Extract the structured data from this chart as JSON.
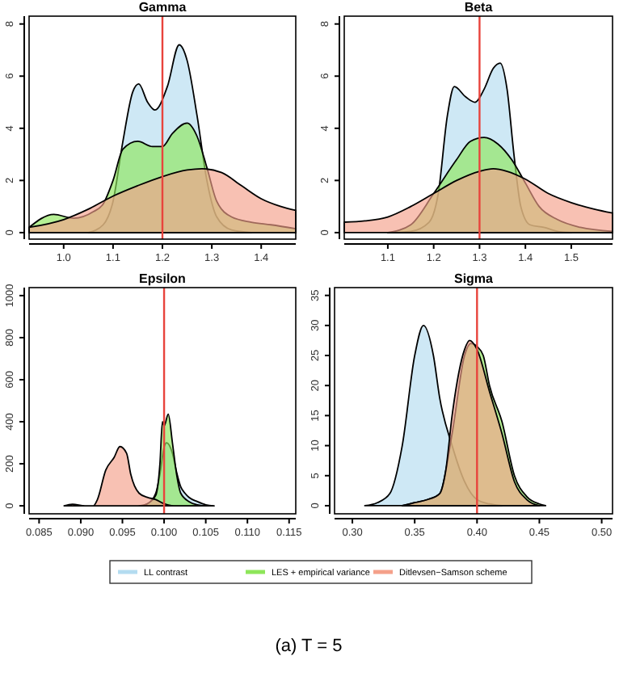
{
  "chart_data": [
    {
      "type": "area",
      "title": "Gamma",
      "xlim": [
        0.93,
        1.47
      ],
      "ylim": [
        -0.25,
        8.3
      ],
      "xticks": [
        {
          "value": 1.0,
          "label": "1.0"
        },
        1.1,
        1.2,
        1.3,
        1.4
      ],
      "yticks": [
        0,
        2,
        4,
        6,
        8
      ],
      "ref_lines": [
        {
          "axis": "x",
          "value": 1.2,
          "color": "#e8433c"
        }
      ],
      "series": [
        {
          "color": "#b4dcf0",
          "x": [
            1.05,
            1.08,
            1.1,
            1.12,
            1.14,
            1.152,
            1.17,
            1.185,
            1.21,
            1.234,
            1.25,
            1.27,
            1.29,
            1.31,
            1.34,
            1.38
          ],
          "values": [
            0,
            0.3,
            1.2,
            3.5,
            5.4,
            5.7,
            5.0,
            4.7,
            5.6,
            7.2,
            6.6,
            4.5,
            2.0,
            0.6,
            0.1,
            0
          ]
        },
        {
          "color": "#8ee65a",
          "x": [
            0.93,
            0.98,
            1.02,
            1.06,
            1.08,
            1.1,
            1.12,
            1.15,
            1.18,
            1.2,
            1.22,
            1.25,
            1.27,
            1.29,
            1.31,
            1.34,
            1.38,
            1.42,
            1.47
          ],
          "values": [
            0.2,
            0.7,
            0.55,
            0.8,
            1.1,
            2.0,
            3.2,
            3.5,
            3.3,
            3.3,
            3.8,
            4.2,
            3.7,
            2.5,
            1.2,
            0.6,
            0.4,
            0.3,
            0.15
          ]
        },
        {
          "color": "#f4a08a",
          "x": [
            0.93,
            1.0,
            1.05,
            1.1,
            1.15,
            1.2,
            1.25,
            1.28,
            1.32,
            1.36,
            1.4,
            1.44,
            1.47
          ],
          "values": [
            0.2,
            0.5,
            0.9,
            1.4,
            1.8,
            2.15,
            2.4,
            2.45,
            2.3,
            1.8,
            1.3,
            1.0,
            0.85
          ]
        }
      ]
    },
    {
      "type": "area",
      "title": "Beta",
      "xlim": [
        1.005,
        1.59
      ],
      "ylim": [
        -0.25,
        8.3
      ],
      "xticks": [
        1.1,
        1.2,
        1.3,
        1.4,
        1.5
      ],
      "yticks": [
        0,
        2,
        4,
        6,
        8
      ],
      "ref_lines": [
        {
          "axis": "x",
          "value": 1.3,
          "color": "#e8433c"
        }
      ],
      "series": [
        {
          "color": "#b4dcf0",
          "x": [
            1.1,
            1.15,
            1.19,
            1.21,
            1.23,
            1.245,
            1.27,
            1.29,
            1.31,
            1.33,
            1.345,
            1.36,
            1.375,
            1.39,
            1.41,
            1.44,
            1.47,
            1.5
          ],
          "values": [
            0,
            0.05,
            0.4,
            1.5,
            4.5,
            5.6,
            5.2,
            5.0,
            5.5,
            6.3,
            6.5,
            5.5,
            3.0,
            1.0,
            0.3,
            0.2,
            0.05,
            0
          ]
        },
        {
          "color": "#8ee65a",
          "x": [
            1.1,
            1.15,
            1.2,
            1.25,
            1.28,
            1.31,
            1.34,
            1.37,
            1.4,
            1.43,
            1.47,
            1.52,
            1.59
          ],
          "values": [
            0,
            0.3,
            1.5,
            2.8,
            3.5,
            3.65,
            3.4,
            2.8,
            1.9,
            1.0,
            0.5,
            0.2,
            0.05
          ]
        },
        {
          "color": "#f4a08a",
          "x": [
            1.005,
            1.05,
            1.1,
            1.15,
            1.2,
            1.25,
            1.3,
            1.33,
            1.36,
            1.4,
            1.45,
            1.5,
            1.55,
            1.59
          ],
          "values": [
            0.4,
            0.45,
            0.6,
            1.0,
            1.5,
            2.0,
            2.35,
            2.45,
            2.35,
            2.05,
            1.5,
            1.15,
            0.9,
            0.75
          ]
        }
      ]
    },
    {
      "type": "area",
      "title": "Epsilon",
      "xlim": [
        0.0838,
        0.1158
      ],
      "ylim": [
        -38,
        1038
      ],
      "xticks": [
        0.085,
        {
          "value": 0.09,
          "label": "0.090"
        },
        0.095,
        {
          "value": 0.1,
          "label": "0.100"
        },
        0.105,
        {
          "value": 0.11,
          "label": "0.110"
        },
        0.115
      ],
      "yticks": [
        0,
        200,
        400,
        600,
        800,
        1000
      ],
      "ref_lines": [
        {
          "axis": "x",
          "value": 0.1,
          "color": "#e8433c"
        }
      ],
      "series": [
        {
          "color": "#b4dcf0",
          "x": [
            0.097,
            0.098,
            0.099,
            0.0995,
            0.1,
            0.1003,
            0.101,
            0.1015,
            0.102,
            0.1025,
            0.103,
            0.104,
            0.105,
            0.106
          ],
          "values": [
            0,
            10,
            60,
            150,
            280,
            300,
            250,
            160,
            90,
            60,
            40,
            20,
            5,
            0
          ]
        },
        {
          "color": "#8ee65a",
          "x": [
            0.0975,
            0.098,
            0.099,
            0.0995,
            0.0998,
            0.1,
            0.1005,
            0.101,
            0.1015,
            0.102,
            0.103,
            0.104,
            0.105
          ],
          "values": [
            0,
            10,
            50,
            200,
            400,
            380,
            436,
            300,
            150,
            60,
            20,
            5,
            0
          ]
        },
        {
          "color": "#f4a08a",
          "x": [
            0.088,
            0.089,
            0.0905,
            0.0915,
            0.092,
            0.093,
            0.094,
            0.0947,
            0.0955,
            0.096,
            0.097,
            0.098,
            0.099,
            0.1,
            0.101
          ],
          "values": [
            0,
            8,
            0,
            0,
            30,
            170,
            230,
            282,
            250,
            150,
            60,
            40,
            30,
            10,
            0
          ]
        }
      ]
    },
    {
      "type": "area",
      "title": "Sigma",
      "xlim": [
        0.2857,
        0.5087
      ],
      "ylim": [
        -1.35,
        36.3
      ],
      "xticks": [
        {
          "value": 0.3,
          "label": "0.30"
        },
        0.35,
        {
          "value": 0.4,
          "label": "0.40"
        },
        0.45,
        {
          "value": 0.5,
          "label": "0.50"
        }
      ],
      "yticks": [
        0,
        5,
        10,
        15,
        20,
        25,
        30,
        35
      ],
      "ref_lines": [
        {
          "axis": "x",
          "value": 0.4,
          "color": "#e8433c"
        }
      ],
      "legend": "bottom",
      "annotations": [
        "(a) T = 5"
      ],
      "series": [
        {
          "name": "LL contrast",
          "color": "#b4dcf0",
          "x": [
            0.31,
            0.32,
            0.33,
            0.34,
            0.35,
            0.357,
            0.365,
            0.37,
            0.38,
            0.39,
            0.4,
            0.41,
            0.42
          ],
          "values": [
            0,
            0.5,
            2,
            10,
            25,
            30,
            25,
            18,
            10,
            4,
            1,
            0.3,
            0
          ]
        },
        {
          "name": "LES + empirical variance",
          "color": "#8ee65a",
          "x": [
            0.34,
            0.35,
            0.36,
            0.37,
            0.38,
            0.39,
            0.395,
            0.4,
            0.405,
            0.41,
            0.42,
            0.43,
            0.44,
            0.45,
            0.455
          ],
          "values": [
            0,
            0.5,
            1,
            2,
            12,
            25,
            27,
            26.5,
            25,
            20,
            14,
            5,
            1.5,
            0.3,
            0
          ]
        },
        {
          "name": "Ditlevsen−Samson scheme",
          "color": "#f4a08a",
          "x": [
            0.34,
            0.35,
            0.36,
            0.37,
            0.375,
            0.38,
            0.39,
            0.394,
            0.4,
            0.41,
            0.42,
            0.43,
            0.44,
            0.45
          ],
          "values": [
            0,
            0.5,
            1,
            2,
            6,
            15,
            26,
            27.5,
            26,
            19,
            12,
            4,
            1,
            0
          ]
        }
      ]
    }
  ]
}
